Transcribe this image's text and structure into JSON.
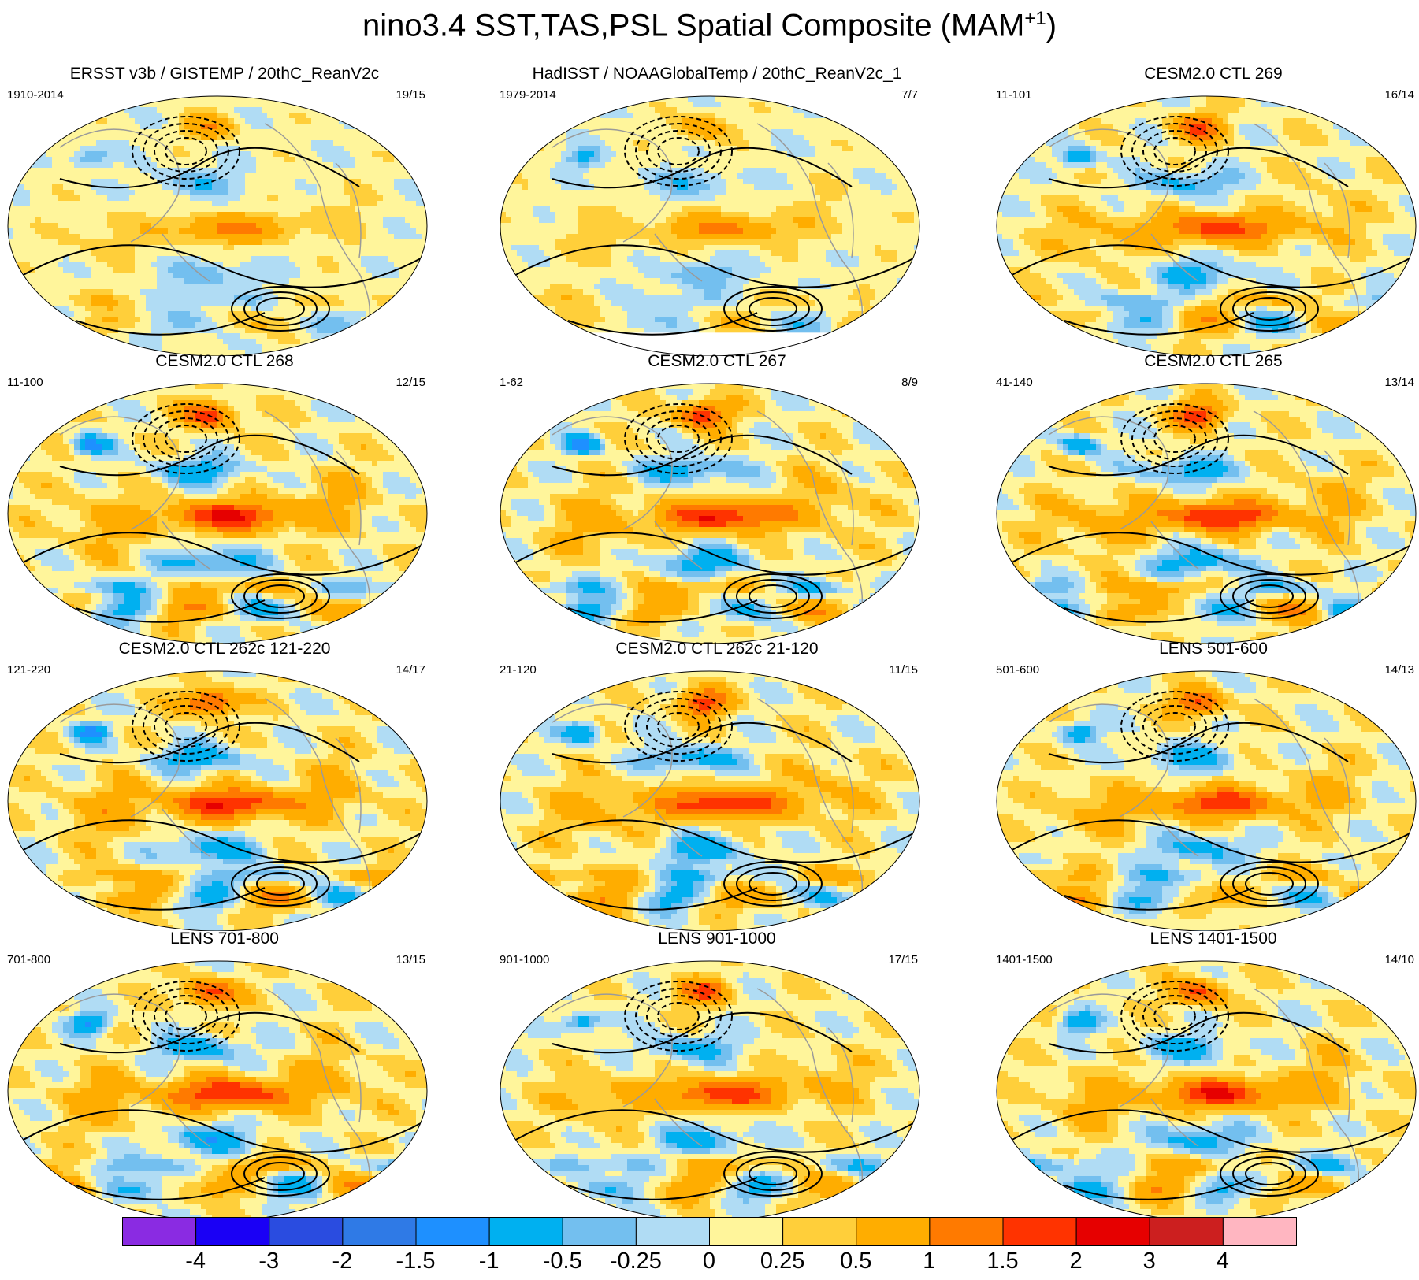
{
  "title": {
    "text": "nino3.4 SST,TAS,PSL Spatial Composite (MAM",
    "sup": "+1",
    "close": ")"
  },
  "panels": [
    {
      "title": "ERSST v3b / GISTEMP / 20thC_ReanV2c",
      "period": "1910-2014",
      "count": "19/15",
      "intensity": 0.55,
      "obs": true
    },
    {
      "title": "HadISST / NOAAGlobalTemp / 20thC_ReanV2c_1",
      "period": "1979-2014",
      "count": "7/7",
      "intensity": 0.55,
      "obs": true
    },
    {
      "title": "CESM2.0 CTL 269",
      "period": "11-101",
      "count": "16/14",
      "intensity": 0.85,
      "obs": false
    },
    {
      "title": "CESM2.0 CTL 268",
      "period": "11-100",
      "count": "12/15",
      "intensity": 1.0,
      "obs": false
    },
    {
      "title": "CESM2.0 CTL 267",
      "period": "1-62",
      "count": "8/9",
      "intensity": 1.0,
      "obs": false
    },
    {
      "title": "CESM2.0 CTL 265",
      "period": "41-140",
      "count": "13/14",
      "intensity": 1.0,
      "obs": false
    },
    {
      "title": "CESM2.0 CTL 262c 121-220",
      "period": "121-220",
      "count": "14/17",
      "intensity": 1.0,
      "obs": false
    },
    {
      "title": "CESM2.0 CTL 262c 21-120",
      "period": "21-120",
      "count": "11/15",
      "intensity": 1.0,
      "obs": false
    },
    {
      "title": "LENS 501-600",
      "period": "501-600",
      "count": "14/13",
      "intensity": 0.9,
      "obs": false
    },
    {
      "title": "LENS 701-800",
      "period": "701-800",
      "count": "13/15",
      "intensity": 1.0,
      "obs": false
    },
    {
      "title": "LENS 901-1000",
      "period": "901-1000",
      "count": "17/15",
      "intensity": 0.9,
      "obs": false
    },
    {
      "title": "LENS 1401-1500",
      "period": "1401-1500",
      "count": "14/10",
      "intensity": 0.95,
      "obs": false
    }
  ],
  "colorbar": {
    "levels": [
      "-4",
      "-3",
      "-2",
      "-1.5",
      "-1",
      "-0.5",
      "-0.25",
      "0",
      "0.25",
      "0.5",
      "1",
      "1.5",
      "2",
      "3",
      "4"
    ],
    "colors": [
      "#8a2be2",
      "#1a00f5",
      "#2a4ce0",
      "#2f7ae6",
      "#1e90ff",
      "#00b0f0",
      "#73bfef",
      "#b0dcf4",
      "#fff59b",
      "#ffcf3a",
      "#ffad00",
      "#ff7a00",
      "#ff3300",
      "#e60000",
      "#cc1f1f",
      "#ffb6c1"
    ]
  }
}
